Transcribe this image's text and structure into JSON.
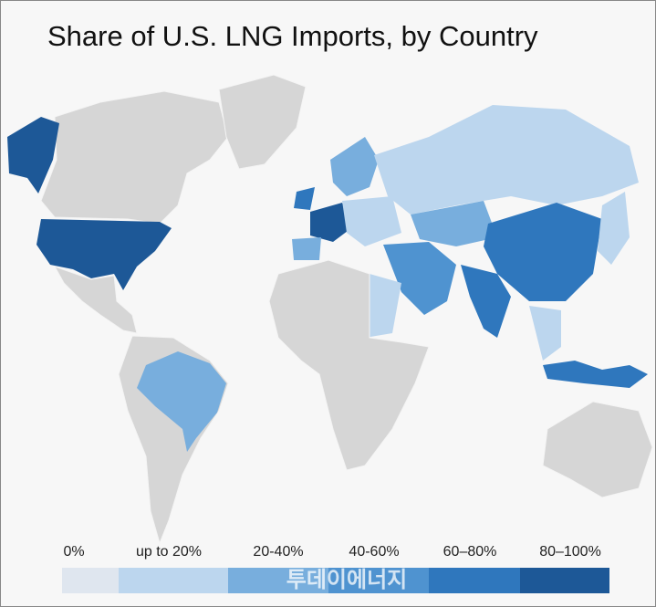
{
  "title": "Share of U.S. LNG Imports, by Country",
  "legend": {
    "items": [
      {
        "label": "0%",
        "color": "#dfe6ef"
      },
      {
        "label": "up to 20%",
        "color": "#bcd6ee"
      },
      {
        "label": "20-40%",
        "color": "#78aedd"
      },
      {
        "label": "40-60%",
        "color": "#4f93d0"
      },
      {
        "label": "60–80%",
        "color": "#2f77bd"
      },
      {
        "label": "80–100%",
        "color": "#1d5897"
      }
    ]
  },
  "watermark": "투데이에너지"
}
